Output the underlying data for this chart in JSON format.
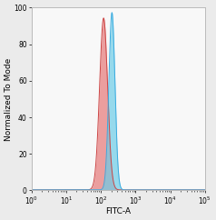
{
  "xlim_log": [
    0,
    5
  ],
  "ylim": [
    0,
    100
  ],
  "xlabel": "FITC-A",
  "ylabel": "Normalized To Mode",
  "yticks": [
    0,
    20,
    40,
    60,
    80,
    100
  ],
  "xtick_powers": [
    0,
    1,
    2,
    3,
    4,
    5
  ],
  "red_peak_log": 2.08,
  "red_peak_height": 94,
  "red_sigma_log": 0.115,
  "blue_peak_log": 2.32,
  "blue_peak_height": 97,
  "blue_sigma_log": 0.088,
  "red_fill_color": "#E88888",
  "red_line_color": "#CC4444",
  "blue_fill_color": "#6DCDE8",
  "blue_line_color": "#3AABE0",
  "bg_color": "#EBEBEB",
  "plot_bg_color": "#F8F8F8",
  "spine_color": "#BBBBBB",
  "baseline": 0.3,
  "label_fontsize": 6.5,
  "tick_fontsize": 5.5
}
